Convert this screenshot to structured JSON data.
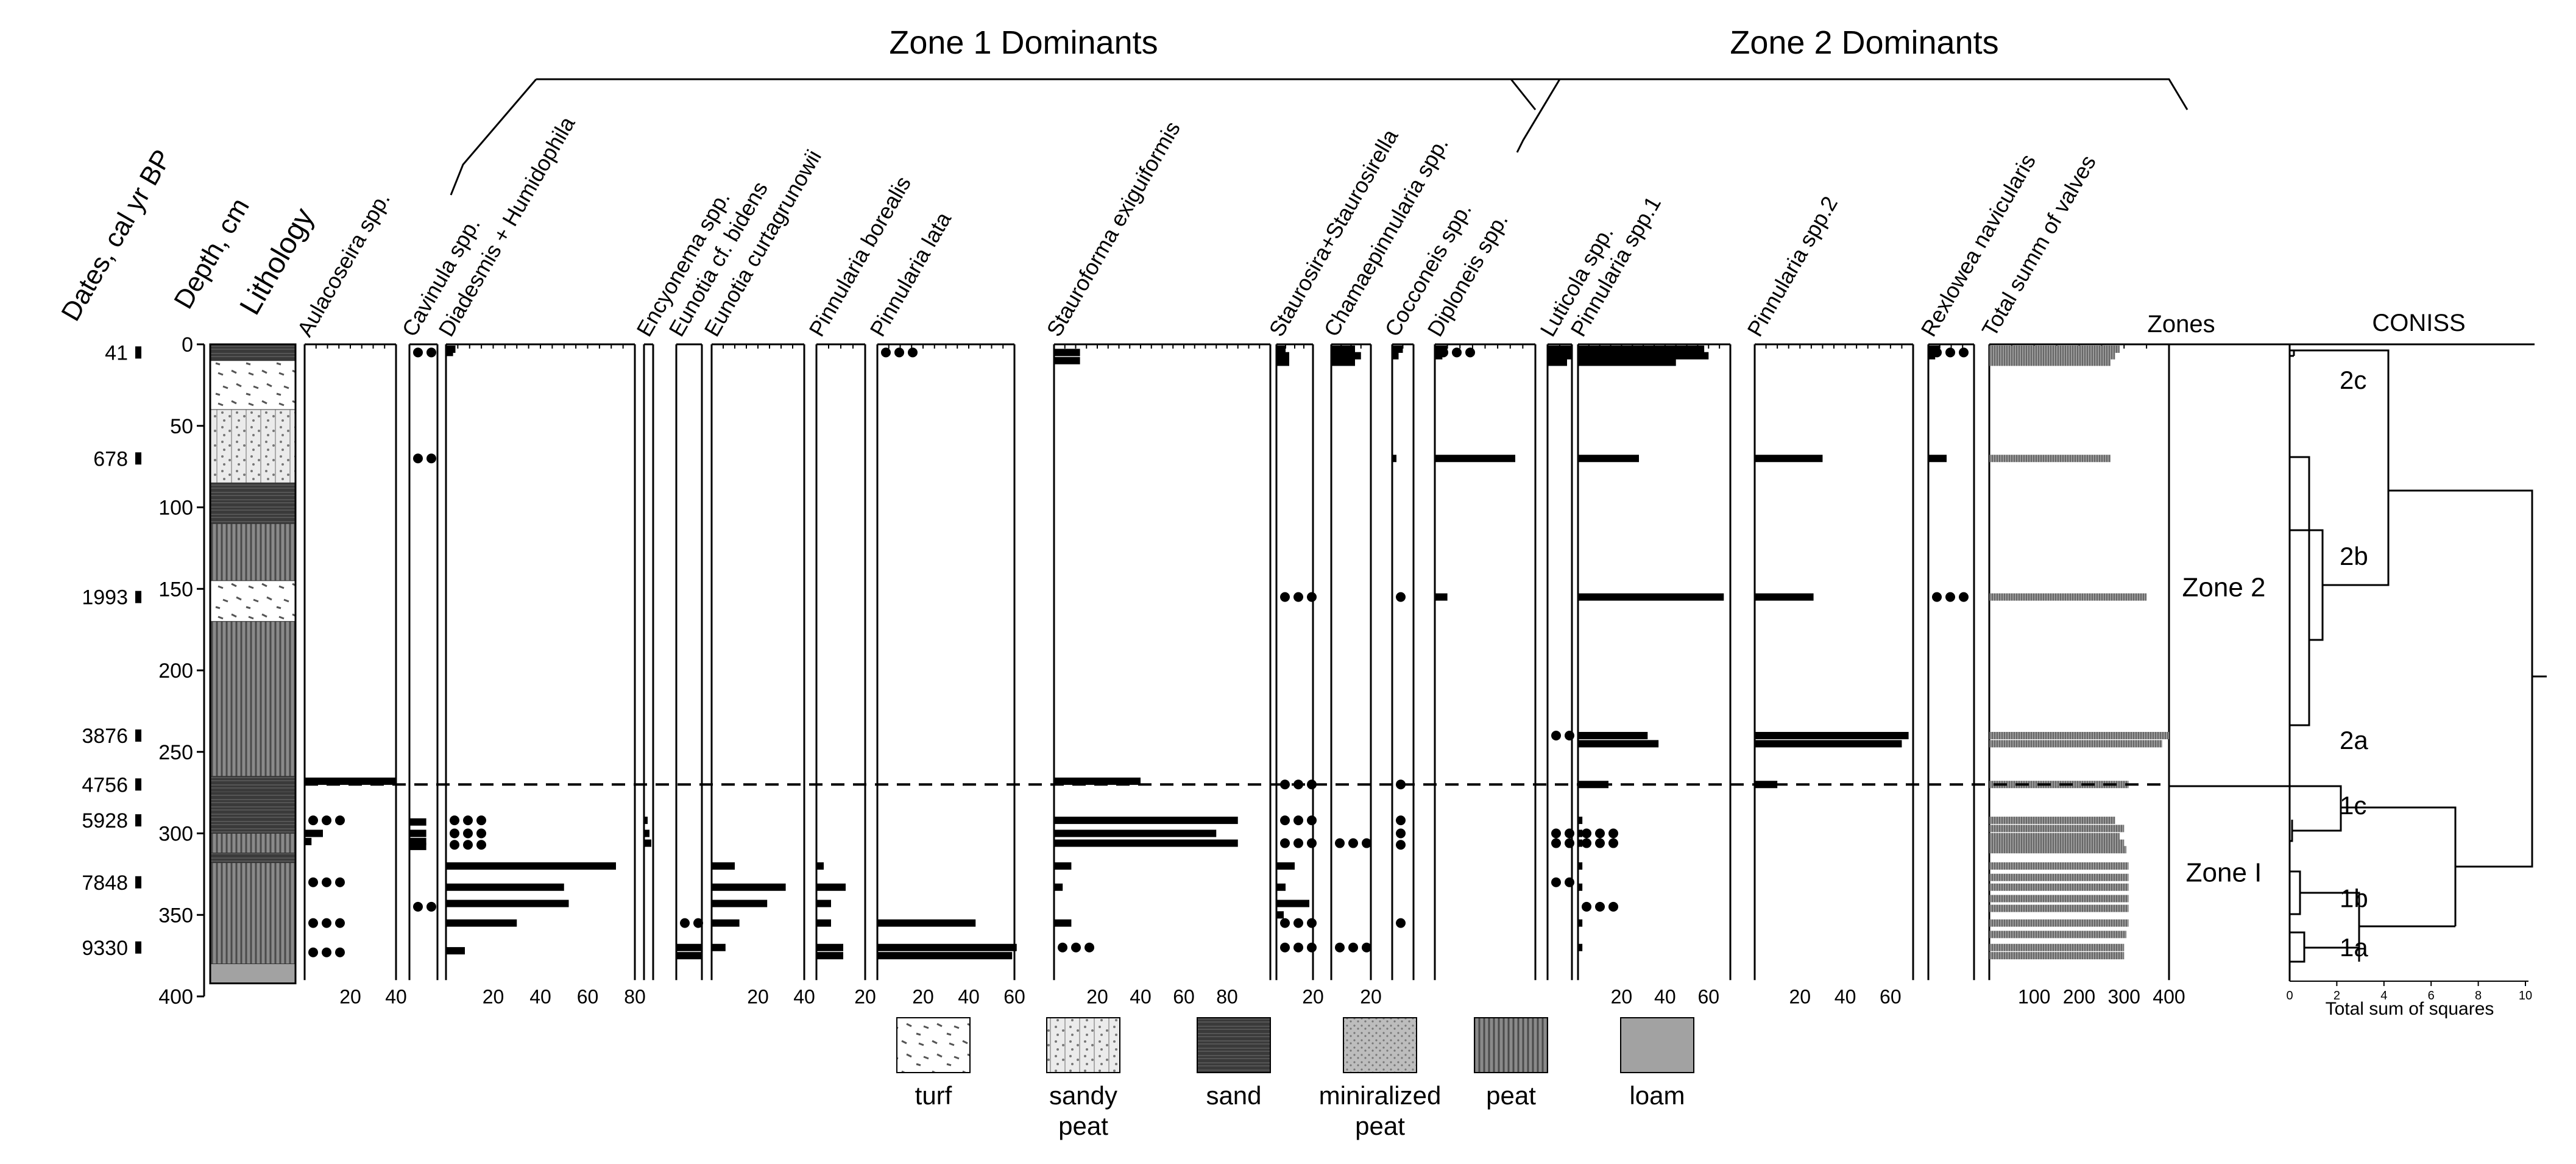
{
  "chart_data": {
    "type": "bar",
    "title_zone1": "Zone 1 Dominants",
    "title_zone2": "Zone 2 Dominants",
    "headers": {
      "dates": "Dates, cal yr BP",
      "depth": "Depth, cm",
      "lithology": "Lithology",
      "zones": "Zones",
      "coniss": "CONISS",
      "coniss_xlabel": "Total sum of squares"
    },
    "depth_axis": {
      "min": 0,
      "max": 400,
      "ticks": [
        0,
        50,
        100,
        150,
        200,
        250,
        300,
        350,
        400
      ]
    },
    "dates": [
      {
        "label": "41",
        "depth": 5
      },
      {
        "label": "678",
        "depth": 70
      },
      {
        "label": "1993",
        "depth": 155
      },
      {
        "label": "3876",
        "depth": 240
      },
      {
        "label": "4756",
        "depth": 270
      },
      {
        "label": "5928",
        "depth": 292
      },
      {
        "label": "7848",
        "depth": 330
      },
      {
        "label": "9330",
        "depth": 370
      }
    ],
    "zone_boundary_depth": 270,
    "lithology_layers": [
      {
        "top": 0,
        "bottom": 10,
        "type": "sand"
      },
      {
        "top": 10,
        "bottom": 40,
        "type": "turf"
      },
      {
        "top": 40,
        "bottom": 85,
        "type": "sandy peat"
      },
      {
        "top": 85,
        "bottom": 110,
        "type": "sand"
      },
      {
        "top": 110,
        "bottom": 145,
        "type": "peat"
      },
      {
        "top": 145,
        "bottom": 170,
        "type": "turf"
      },
      {
        "top": 170,
        "bottom": 265,
        "type": "peat"
      },
      {
        "top": 265,
        "bottom": 275,
        "type": "sand"
      },
      {
        "top": 275,
        "bottom": 300,
        "type": "sand"
      },
      {
        "top": 300,
        "bottom": 312,
        "type": "peat"
      },
      {
        "top": 312,
        "bottom": 318,
        "type": "sand"
      },
      {
        "top": 318,
        "bottom": 380,
        "type": "peat"
      },
      {
        "top": 380,
        "bottom": 392,
        "type": "loam"
      }
    ],
    "legend": [
      {
        "type": "turf",
        "label": "turf"
      },
      {
        "type": "sandy peat",
        "label": "sandy peat"
      },
      {
        "type": "sand",
        "label": "sand"
      },
      {
        "type": "mineralized peat",
        "label": "miniralized peat"
      },
      {
        "type": "peat",
        "label": "peat"
      },
      {
        "type": "loam",
        "label": "loam"
      }
    ],
    "series": [
      {
        "name": "Aulacoseira spp.",
        "xmax": 40,
        "ticks": [
          20,
          40
        ],
        "points": [
          [
            268,
            40
          ],
          [
            300,
            8
          ],
          [
            305,
            3
          ]
        ],
        "dots": [
          292,
          330,
          355,
          373
        ]
      },
      {
        "name": "Cavinula spp.",
        "xmax": 5,
        "ticks": [],
        "points": [
          [
            293,
            3
          ],
          [
            300,
            3
          ],
          [
            305,
            3
          ],
          [
            308,
            3
          ]
        ],
        "dots": [
          5,
          70,
          345
        ]
      },
      {
        "name": "Diadesmis + Humidophila",
        "xmax": 80,
        "ticks": [
          20,
          40,
          60,
          80
        ],
        "points": [
          [
            3,
            4
          ],
          [
            5,
            3
          ],
          [
            320,
            72
          ],
          [
            333,
            50
          ],
          [
            343,
            52
          ],
          [
            355,
            30
          ],
          [
            372,
            8
          ]
        ],
        "dots": [
          292,
          300,
          307
        ]
      },
      {
        "name": "Encyonema spp.",
        "xmax": 5,
        "ticks": [],
        "points": [
          [
            292,
            2
          ],
          [
            300,
            3
          ],
          [
            306,
            4
          ]
        ],
        "dots": []
      },
      {
        "name": "Eunotia cf. bidens",
        "xmax": 5,
        "ticks": [],
        "points": [
          [
            370,
            5
          ],
          [
            375,
            5
          ]
        ],
        "dots": [
          355
        ]
      },
      {
        "name": "Eunotia curtagrunowii",
        "xmax": 40,
        "ticks": [
          20,
          40
        ],
        "points": [
          [
            320,
            10
          ],
          [
            333,
            32
          ],
          [
            343,
            24
          ],
          [
            355,
            12
          ],
          [
            370,
            6
          ]
        ],
        "dots": []
      },
      {
        "name": "Pinnularia borealis",
        "xmax": 20,
        "ticks": [
          20
        ],
        "points": [
          [
            320,
            3
          ],
          [
            333,
            12
          ],
          [
            343,
            6
          ],
          [
            355,
            6
          ],
          [
            370,
            11
          ],
          [
            375,
            11
          ]
        ],
        "dots": []
      },
      {
        "name": "Pinnularia lata",
        "xmax": 60,
        "ticks": [
          20,
          40,
          60
        ],
        "points": [
          [
            355,
            43
          ],
          [
            370,
            61
          ],
          [
            375,
            59
          ]
        ],
        "dots": [
          5
        ]
      },
      {
        "name": "Stauroforma exiguiformis",
        "xmax": 100,
        "ticks": [
          20,
          40,
          60,
          80
        ],
        "points": [
          [
            5,
            12
          ],
          [
            10,
            12
          ],
          [
            268,
            40
          ],
          [
            292,
            85
          ],
          [
            300,
            75
          ],
          [
            306,
            85
          ],
          [
            320,
            8
          ],
          [
            333,
            4
          ],
          [
            355,
            8
          ]
        ],
        "dots": [
          370
        ]
      },
      {
        "name": "Staurosira+Staurosirella",
        "xmax": 20,
        "ticks": [
          20
        ],
        "points": [
          [
            3,
            5
          ],
          [
            7,
            7
          ],
          [
            11,
            7
          ],
          [
            320,
            10
          ],
          [
            333,
            5
          ],
          [
            343,
            18
          ],
          [
            350,
            4
          ]
        ],
        "dots": [
          155,
          270,
          292,
          306,
          355,
          370
        ]
      },
      {
        "name": "Chamaepinnularia spp.",
        "xmax": 20,
        "ticks": [
          20
        ],
        "points": [
          [
            3,
            12
          ],
          [
            7,
            15
          ],
          [
            11,
            12
          ]
        ],
        "dots": [
          306,
          370
        ]
      },
      {
        "name": "Cocconeis spp.",
        "xmax": 10,
        "ticks": [],
        "points": [
          [
            3,
            5
          ],
          [
            7,
            3
          ],
          [
            70,
            2
          ]
        ],
        "dots": [
          155,
          270,
          292,
          300,
          307,
          355
        ]
      },
      {
        "name": "Diploneis spp.",
        "xmax": 40,
        "ticks": [],
        "points": [
          [
            3,
            5
          ],
          [
            7,
            3
          ],
          [
            70,
            32
          ],
          [
            155,
            5
          ]
        ],
        "dots": [
          5
        ]
      },
      {
        "name": "Luticola spp.",
        "xmax": 10,
        "ticks": [],
        "points": [
          [
            3,
            10
          ],
          [
            7,
            10
          ],
          [
            11,
            8
          ]
        ],
        "dots": [
          240,
          300,
          306,
          330
        ]
      },
      {
        "name": "Pinnularia spp.1",
        "xmax": 70,
        "ticks": [
          20,
          40,
          60
        ],
        "points": [
          [
            3,
            58
          ],
          [
            7,
            60
          ],
          [
            11,
            45
          ],
          [
            70,
            28
          ],
          [
            155,
            67
          ],
          [
            240,
            32
          ],
          [
            245,
            37
          ],
          [
            270,
            14
          ],
          [
            292,
            2
          ],
          [
            300,
            2
          ],
          [
            306,
            2
          ],
          [
            320,
            2
          ],
          [
            333,
            2
          ],
          [
            355,
            2
          ],
          [
            370,
            2
          ]
        ],
        "dots": [
          300,
          306,
          345
        ]
      },
      {
        "name": "Pinnularia spp.2",
        "xmax": 70,
        "ticks": [
          20,
          40,
          60
        ],
        "points": [
          [
            70,
            30
          ],
          [
            155,
            26
          ],
          [
            240,
            68
          ],
          [
            245,
            65
          ],
          [
            270,
            10
          ]
        ],
        "dots": []
      },
      {
        "name": "Rexlowea navicularis",
        "xmax": 20,
        "ticks": [],
        "points": [
          [
            3,
            5
          ],
          [
            7,
            3
          ],
          [
            70,
            8
          ]
        ],
        "dots": [
          5,
          155
        ]
      },
      {
        "name": "Total summ of valves",
        "xmax": 400,
        "ticks": [
          100,
          200,
          300,
          400
        ],
        "points": [
          [
            3,
            290
          ],
          [
            7,
            280
          ],
          [
            11,
            270
          ],
          [
            70,
            270
          ],
          [
            155,
            350
          ],
          [
            240,
            400
          ],
          [
            245,
            385
          ],
          [
            270,
            310
          ],
          [
            292,
            280
          ],
          [
            297,
            300
          ],
          [
            302,
            290
          ],
          [
            306,
            300
          ],
          [
            310,
            305
          ],
          [
            320,
            310
          ],
          [
            327,
            310
          ],
          [
            333,
            310
          ],
          [
            340,
            310
          ],
          [
            346,
            310
          ],
          [
            355,
            310
          ],
          [
            362,
            305
          ],
          [
            370,
            300
          ],
          [
            375,
            300
          ]
        ],
        "dots": []
      }
    ],
    "zones": [
      {
        "label": "Zone 2",
        "depth": 150
      },
      {
        "label": "Zone I",
        "depth": 325
      }
    ],
    "coniss": {
      "xmax": 10,
      "ticks": [
        2,
        4,
        6,
        8,
        10
      ],
      "subzone_labels": [
        {
          "label": "2c",
          "depth": 22
        },
        {
          "label": "2b",
          "depth": 130
        },
        {
          "label": "2a",
          "depth": 243
        },
        {
          "label": "1c",
          "depth": 283
        },
        {
          "label": "1b",
          "depth": 340
        },
        {
          "label": "1a",
          "depth": 370
        }
      ]
    }
  }
}
